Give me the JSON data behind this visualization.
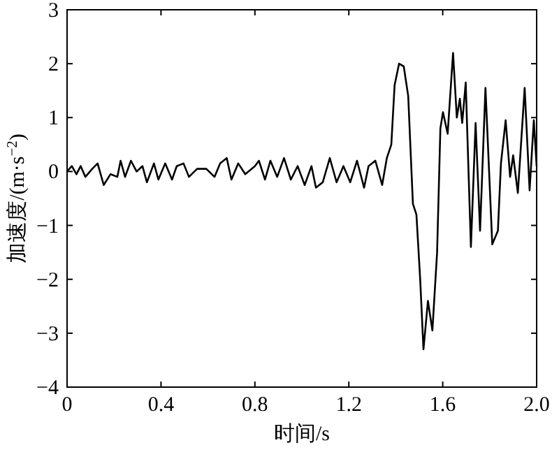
{
  "chart_data": {
    "type": "line",
    "xlabel": "时间/s",
    "ylabel": "加速度/(m·s$^{−2}$)",
    "xlim": [
      0,
      2.0
    ],
    "ylim": [
      -4,
      3
    ],
    "xticks": [
      0,
      0.4,
      0.8,
      1.2,
      1.6,
      {
        "value": 2.0,
        "label": "2.0"
      }
    ],
    "yticks": [
      {
        "value": -4,
        "label": "−4"
      },
      {
        "value": -3,
        "label": "−3"
      },
      {
        "value": -2,
        "label": "−2"
      },
      {
        "value": -1,
        "label": "−1"
      },
      0,
      1,
      2,
      3
    ],
    "grid": false,
    "line_style": "solid",
    "series": [
      {
        "color": "#000000",
        "x": [
          0,
          0.02,
          0.04,
          0.058,
          0.078,
          0.107,
          0.13,
          0.156,
          0.185,
          0.214,
          0.228,
          0.247,
          0.272,
          0.296,
          0.321,
          0.34,
          0.37,
          0.389,
          0.418,
          0.447,
          0.467,
          0.496,
          0.519,
          0.554,
          0.593,
          0.628,
          0.652,
          0.68,
          0.7,
          0.729,
          0.759,
          0.8,
          0.817,
          0.843,
          0.866,
          0.895,
          0.924,
          0.953,
          0.982,
          1.012,
          1.041,
          1.06,
          1.089,
          1.119,
          1.148,
          1.177,
          1.206,
          1.235,
          1.265,
          1.284,
          1.313,
          1.342,
          1.362,
          1.381,
          1.395,
          1.414,
          1.434,
          1.453,
          1.473,
          1.488,
          1.504,
          1.518,
          1.537,
          1.556,
          1.576,
          1.59,
          1.601,
          1.621,
          1.644,
          1.66,
          1.673,
          1.683,
          1.698,
          1.72,
          1.74,
          1.759,
          1.782,
          1.811,
          1.835,
          1.848,
          1.868,
          1.887,
          1.9,
          1.92,
          1.949,
          1.97,
          1.988,
          2.0
        ],
        "values": [
          0,
          0.1,
          -0.05,
          0.1,
          -0.1,
          0.05,
          0.15,
          -0.25,
          -0.05,
          -0.1,
          0.2,
          -0.1,
          0.2,
          0,
          0.1,
          -0.2,
          0.15,
          -0.15,
          0.15,
          -0.15,
          0.1,
          0.15,
          -0.1,
          0.05,
          0.05,
          -0.1,
          0.15,
          0.25,
          -0.15,
          0.15,
          -0.05,
          0.1,
          0.2,
          -0.15,
          0.2,
          -0.1,
          0.25,
          -0.15,
          0.1,
          -0.25,
          0.1,
          -0.3,
          -0.2,
          0.25,
          -0.2,
          0.1,
          -0.2,
          0.2,
          -0.3,
          0.1,
          0.2,
          -0.25,
          0.25,
          0.5,
          1.6,
          2.0,
          1.95,
          1.4,
          -0.6,
          -0.8,
          -2.0,
          -3.3,
          -2.4,
          -2.95,
          -1.5,
          0.8,
          1.1,
          0.7,
          2.2,
          1.0,
          1.35,
          0.9,
          1.65,
          -1.4,
          0.9,
          -1.1,
          1.55,
          -1.35,
          -1.1,
          0.15,
          0.95,
          -0.1,
          0.3,
          -0.4,
          1.55,
          -0.35,
          0.95,
          0.1
        ]
      }
    ]
  }
}
